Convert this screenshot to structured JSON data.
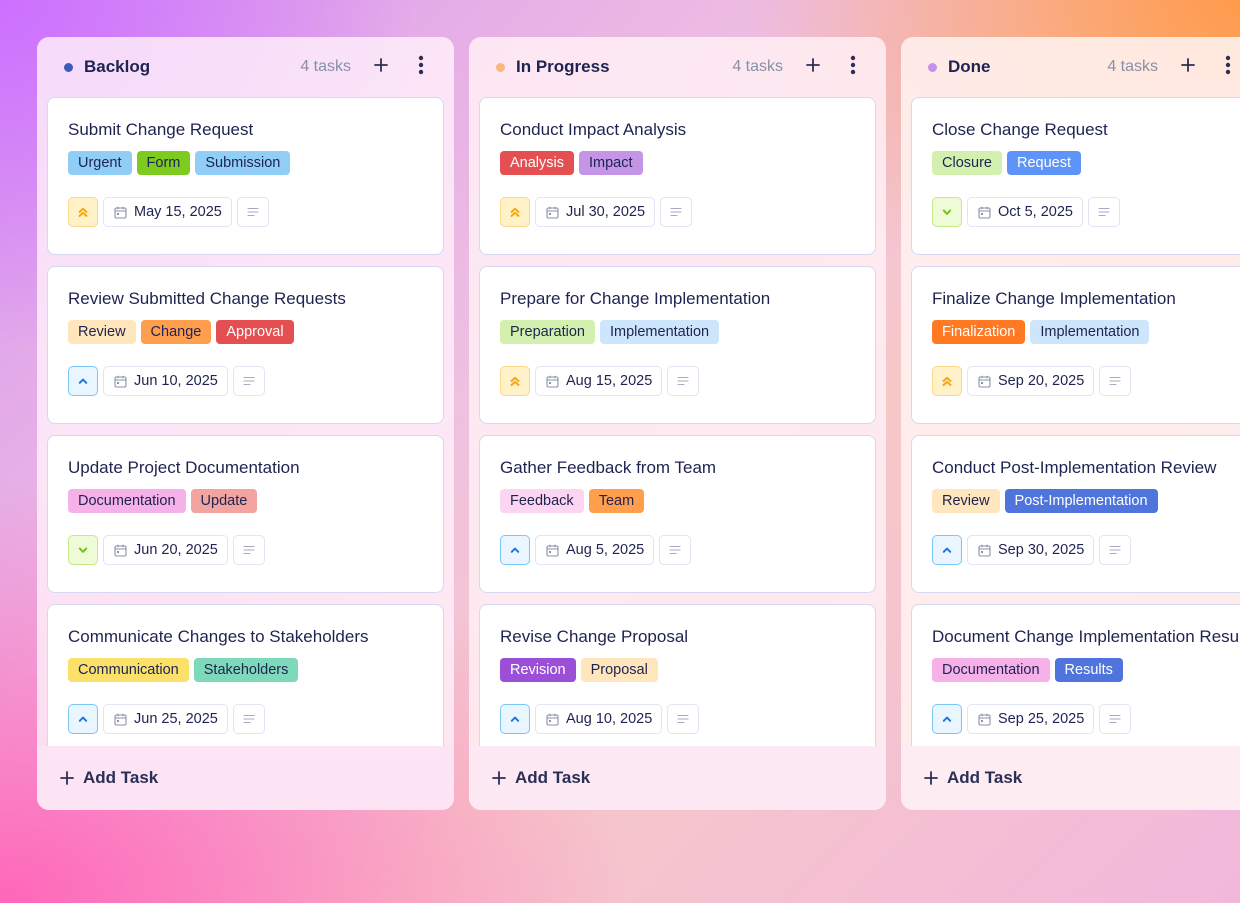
{
  "columns": [
    {
      "title": "Backlog",
      "dot_color": "#3e5bb8",
      "count": "4 tasks",
      "add_label": "Add Task",
      "cards": [
        {
          "title": "Submit Change Request",
          "tags": [
            {
              "label": "Urgent",
              "bg": "#90cdf7",
              "fg": "#1f2350"
            },
            {
              "label": "Form",
              "bg": "#7ecb1f",
              "fg": "#1f2350"
            },
            {
              "label": "Submission",
              "bg": "#90cdf7",
              "fg": "#1f2350"
            }
          ],
          "priority": "high",
          "priority_icon": "double-chevron-up-icon",
          "date": "May 15, 2025"
        },
        {
          "title": "Review Submitted Change Requests",
          "tags": [
            {
              "label": "Review",
              "bg": "#ffe6bd",
              "fg": "#1f2350"
            },
            {
              "label": "Change",
              "bg": "#ff9e4d",
              "fg": "#1f2350"
            },
            {
              "label": "Approval",
              "bg": "#e45052",
              "fg": "#ffffff"
            }
          ],
          "priority": "med",
          "priority_icon": "chevron-up-icon",
          "date": "Jun 10, 2025"
        },
        {
          "title": "Update Project Documentation",
          "tags": [
            {
              "label": "Documentation",
              "bg": "#f6b1e9",
              "fg": "#1f2350"
            },
            {
              "label": "Update",
              "bg": "#f2a4a0",
              "fg": "#1f2350"
            }
          ],
          "priority": "low",
          "priority_icon": "chevron-down-icon",
          "date": "Jun 20, 2025"
        },
        {
          "title": "Communicate Changes to Stakeholders",
          "tags": [
            {
              "label": "Communication",
              "bg": "#fbe16a",
              "fg": "#1f2350"
            },
            {
              "label": "Stakeholders",
              "bg": "#7ed9bb",
              "fg": "#1f2350"
            }
          ],
          "priority": "med",
          "priority_icon": "chevron-up-icon",
          "date": "Jun 25, 2025"
        }
      ]
    },
    {
      "title": "In Progress",
      "dot_color": "#fbb77f",
      "count": "4 tasks",
      "add_label": "Add Task",
      "cards": [
        {
          "title": "Conduct Impact Analysis",
          "tags": [
            {
              "label": "Analysis",
              "bg": "#e45052",
              "fg": "#ffffff"
            },
            {
              "label": "Impact",
              "bg": "#c495e6",
              "fg": "#1f2350"
            }
          ],
          "priority": "high",
          "priority_icon": "double-chevron-up-icon",
          "date": "Jul 30, 2025"
        },
        {
          "title": "Prepare for Change Implementation",
          "tags": [
            {
              "label": "Preparation",
              "bg": "#d3f0ae",
              "fg": "#1f2350"
            },
            {
              "label": "Implementation",
              "bg": "#cde6fb",
              "fg": "#1f2350"
            }
          ],
          "priority": "high",
          "priority_icon": "double-chevron-up-icon",
          "date": "Aug 15, 2025"
        },
        {
          "title": "Gather Feedback from Team",
          "tags": [
            {
              "label": "Feedback",
              "bg": "#fbd5f1",
              "fg": "#1f2350"
            },
            {
              "label": "Team",
              "bg": "#ff9e4d",
              "fg": "#1f2350"
            }
          ],
          "priority": "med",
          "priority_icon": "chevron-up-icon",
          "date": "Aug 5, 2025"
        },
        {
          "title": "Revise Change Proposal",
          "tags": [
            {
              "label": "Revision",
              "bg": "#9b4fd6",
              "fg": "#ffffff"
            },
            {
              "label": "Proposal",
              "bg": "#ffe6bd",
              "fg": "#1f2350"
            }
          ],
          "priority": "med",
          "priority_icon": "chevron-up-icon",
          "date": "Aug 10, 2025"
        }
      ]
    },
    {
      "title": "Done",
      "dot_color": "#c590e8",
      "count": "4 tasks",
      "add_label": "Add Task",
      "cards": [
        {
          "title": "Close Change Request",
          "tags": [
            {
              "label": "Closure",
              "bg": "#d3f0ae",
              "fg": "#1f2350"
            },
            {
              "label": "Request",
              "bg": "#5e94f7",
              "fg": "#ffffff"
            }
          ],
          "priority": "low",
          "priority_icon": "chevron-down-icon",
          "date": "Oct 5, 2025"
        },
        {
          "title": "Finalize Change Implementation",
          "tags": [
            {
              "label": "Finalization",
              "bg": "#ff7a22",
              "fg": "#ffffff"
            },
            {
              "label": "Implementation",
              "bg": "#cde6fb",
              "fg": "#1f2350"
            }
          ],
          "priority": "high",
          "priority_icon": "double-chevron-up-icon",
          "date": "Sep 20, 2025"
        },
        {
          "title": "Conduct Post-Implementation Review",
          "tags": [
            {
              "label": "Review",
              "bg": "#ffe6bd",
              "fg": "#1f2350"
            },
            {
              "label": "Post-Implementation",
              "bg": "#4f74dc",
              "fg": "#ffffff"
            }
          ],
          "priority": "med",
          "priority_icon": "chevron-up-icon",
          "date": "Sep 30, 2025"
        },
        {
          "title": "Document Change Implementation Results",
          "tags": [
            {
              "label": "Documentation",
              "bg": "#f6b1e9",
              "fg": "#1f2350"
            },
            {
              "label": "Results",
              "bg": "#4f74dc",
              "fg": "#ffffff"
            }
          ],
          "priority": "med",
          "priority_icon": "chevron-up-icon",
          "date": "Sep 25, 2025"
        }
      ]
    }
  ],
  "icons": {
    "add": "plus-icon",
    "more": "vertical-dots-icon",
    "date": "calendar-icon",
    "note": "description-lines-icon"
  }
}
